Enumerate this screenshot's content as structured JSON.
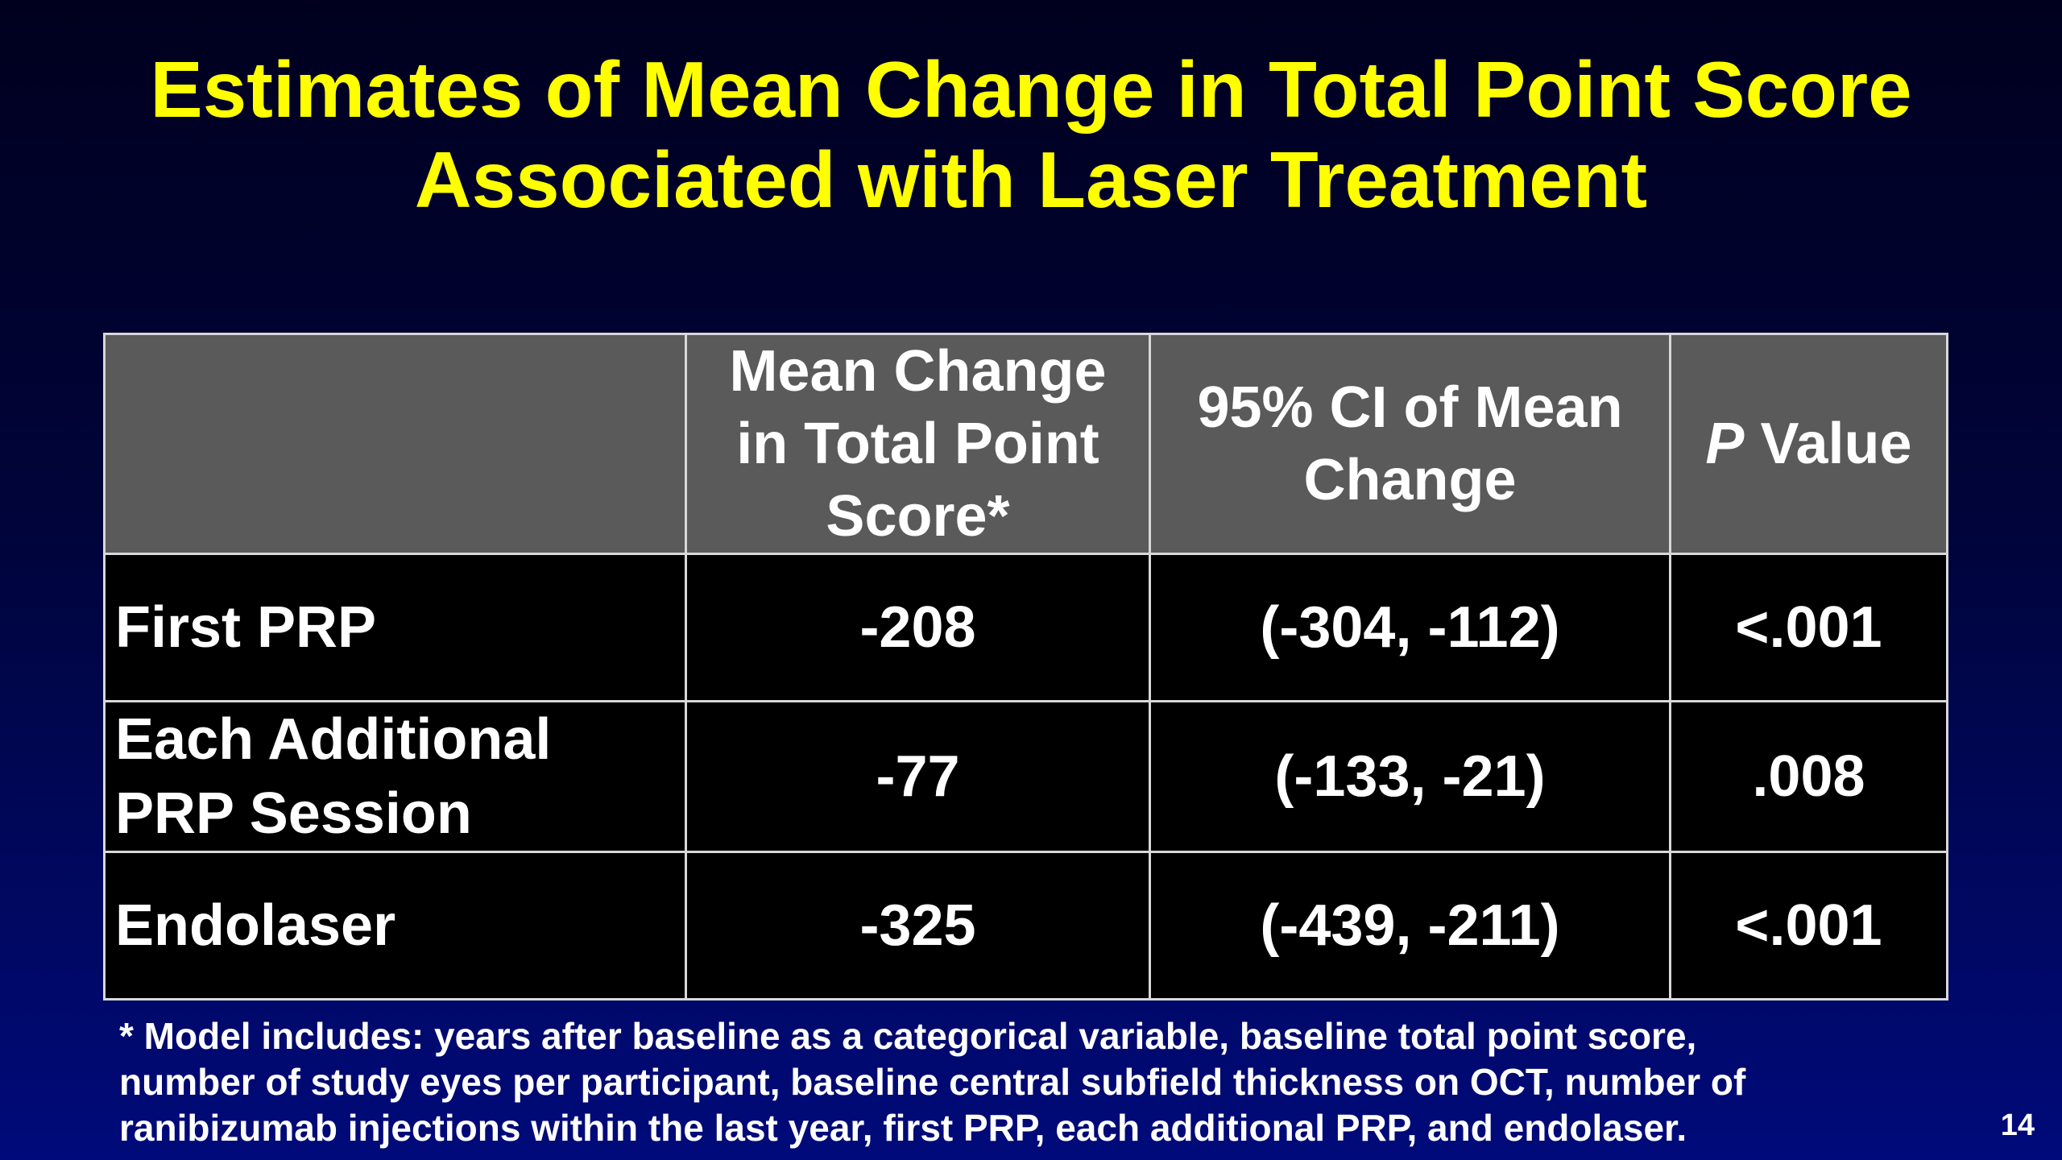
{
  "title": {
    "line1": "Estimates of Mean Change in Total Point Score",
    "line2": "Associated with Laser Treatment"
  },
  "table": {
    "headers": {
      "col1": "",
      "col2": {
        "line1": "Mean Change",
        "line2": "in Total Point",
        "line3": "Score*"
      },
      "col3": {
        "line1": "95% CI of Mean",
        "line2": "Change"
      },
      "col4": {
        "italic": "P",
        "rest": " Value"
      }
    },
    "rows": [
      {
        "label_line1": "First PRP",
        "label_line2": "",
        "mean_change": "-208",
        "ci": "(-304, -112)",
        "p_value": "<.001"
      },
      {
        "label_line1": "Each Additional",
        "label_line2": "PRP Session",
        "mean_change": "-77",
        "ci": "(-133, -21)",
        "p_value": ".008"
      },
      {
        "label_line1": "Endolaser",
        "label_line2": "",
        "mean_change": "-325",
        "ci": "(-439, -211)",
        "p_value": "<.001"
      }
    ]
  },
  "footnote": {
    "line1": "* Model includes: years after baseline as a categorical variable, baseline total point score,",
    "line2": "number of study eyes per participant, baseline central subfield thickness on OCT, number of",
    "line3": "ranibizumab injections within the last year, first PRP, each additional PRP, and endolaser."
  },
  "page_number": "14",
  "colors": {
    "title": "#ffff00",
    "header_bg": "#5a5a5a",
    "body_bg": "#000000",
    "background_top": "#00001e",
    "background_bottom": "#000a7a"
  }
}
